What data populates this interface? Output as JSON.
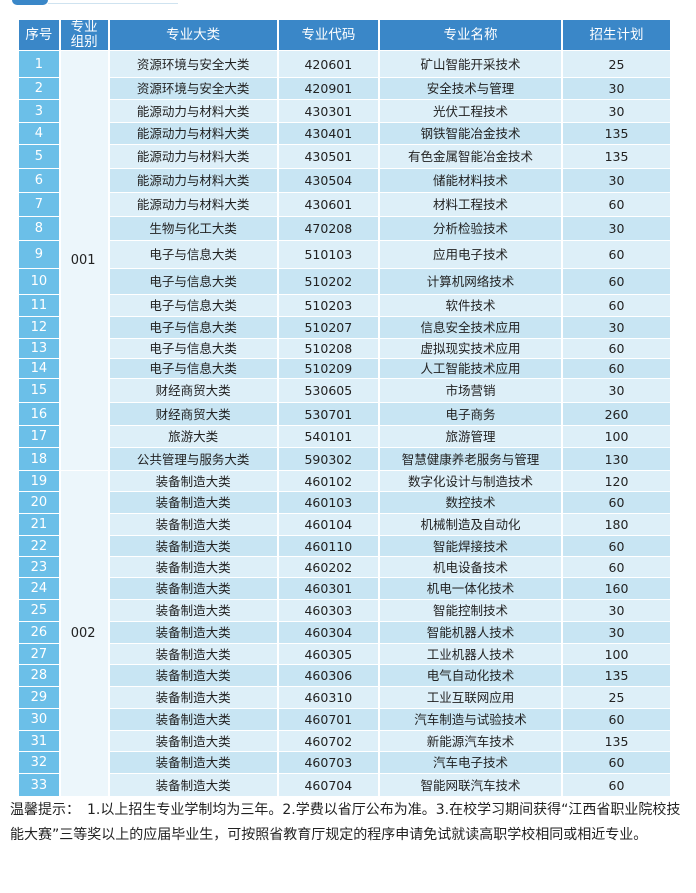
{
  "header": [
    "序号",
    "专业组别",
    "专业大类",
    "专业代码",
    "专业名称",
    "招生计划"
  ],
  "groups": [
    {
      "label": "001",
      "rows": 18
    },
    {
      "label": "002",
      "rows": 15
    }
  ],
  "rows": [
    [
      "1",
      "资源环境与安全大类",
      "420601",
      "矿山智能开采技术",
      "25"
    ],
    [
      "2",
      "资源环境与安全大类",
      "420901",
      "安全技术与管理",
      "30"
    ],
    [
      "3",
      "能源动力与材料大类",
      "430301",
      "光伏工程技术",
      "30"
    ],
    [
      "4",
      "能源动力与材料大类",
      "430401",
      "钢铁智能冶金技术",
      "135"
    ],
    [
      "5",
      "能源动力与材料大类",
      "430501",
      "有色金属智能冶金技术",
      "135"
    ],
    [
      "6",
      "能源动力与材料大类",
      "430504",
      "储能材料技术",
      "30"
    ],
    [
      "7",
      "能源动力与材料大类",
      "430601",
      "材料工程技术",
      "60"
    ],
    [
      "8",
      "生物与化工大类",
      "470208",
      "分析检验技术",
      "30"
    ],
    [
      "9",
      "电子与信息大类",
      "510103",
      "应用电子技术",
      "60"
    ],
    [
      "10",
      "电子与信息大类",
      "510202",
      "计算机网络技术",
      "60"
    ],
    [
      "11",
      "电子与信息大类",
      "510203",
      "软件技术",
      "60"
    ],
    [
      "12",
      "电子与信息大类",
      "510207",
      "信息安全技术应用",
      "30"
    ],
    [
      "13",
      "电子与信息大类",
      "510208",
      "虚拟现实技术应用",
      "60"
    ],
    [
      "14",
      "电子与信息大类",
      "510209",
      "人工智能技术应用",
      "60"
    ],
    [
      "15",
      "财经商贸大类",
      "530605",
      "市场营销",
      "30"
    ],
    [
      "16",
      "财经商贸大类",
      "530701",
      "电子商务",
      "260"
    ],
    [
      "17",
      "旅游大类",
      "540101",
      "旅游管理",
      "100"
    ],
    [
      "18",
      "公共管理与服务大类",
      "590302",
      "智慧健康养老服务与管理",
      "130"
    ],
    [
      "19",
      "装备制造大类",
      "460102",
      "数字化设计与制造技术",
      "120"
    ],
    [
      "20",
      "装备制造大类",
      "460103",
      "数控技术",
      "60"
    ],
    [
      "21",
      "装备制造大类",
      "460104",
      "机械制造及自动化",
      "180"
    ],
    [
      "22",
      "装备制造大类",
      "460110",
      "智能焊接技术",
      "60"
    ],
    [
      "23",
      "装备制造大类",
      "460202",
      "机电设备技术",
      "60"
    ],
    [
      "24",
      "装备制造大类",
      "460301",
      "机电一体化技术",
      "160"
    ],
    [
      "25",
      "装备制造大类",
      "460303",
      "智能控制技术",
      "30"
    ],
    [
      "26",
      "装备制造大类",
      "460304",
      "智能机器人技术",
      "30"
    ],
    [
      "27",
      "装备制造大类",
      "460305",
      "工业机器人技术",
      "100"
    ],
    [
      "28",
      "装备制造大类",
      "460306",
      "电气自动化技术",
      "135"
    ],
    [
      "29",
      "装备制造大类",
      "460310",
      "工业互联网应用",
      "25"
    ],
    [
      "30",
      "装备制造大类",
      "460701",
      "汽车制造与试验技术",
      "60"
    ],
    [
      "31",
      "装备制造大类",
      "460702",
      "新能源汽车技术",
      "135"
    ],
    [
      "32",
      "装备制造大类",
      "460703",
      "汽车电子技术",
      "60"
    ],
    [
      "33",
      "装备制造大类",
      "460704",
      "智能网联汽车技术",
      "60"
    ]
  ],
  "note": "温馨提示：　1.以上招生专业学制均为三年。2.学费以省厅公布为准。3.在校学习期间获得“江西省职业院校技能大赛”三等奖以上的应届毕业生，可按照省教育厅规定的程序申请免试就读高职学校相同或相近专业。"
}
